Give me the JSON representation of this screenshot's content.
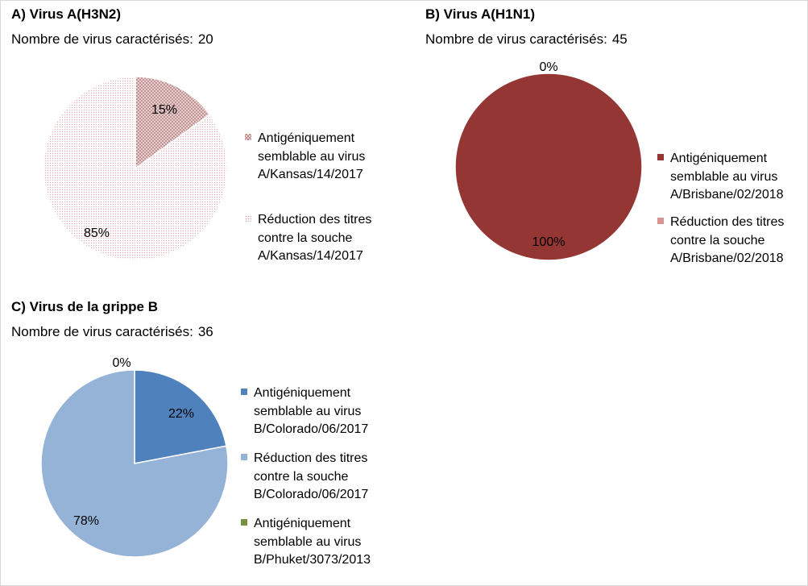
{
  "colors": {
    "h3n2_kansas": "#b88888",
    "h3n2_reduced": "#e7c9c9",
    "h1n1_brisbane": "#943634",
    "h1n1_reduced": "#d99594",
    "b_colorado": "#4f81bd",
    "b_reduced": "#95b3d7",
    "b_phuket": "#77933c"
  },
  "panels": [
    {
      "title": "A) Virus A(H3N2)",
      "count_label": "Nombre de virus caractérisés:",
      "count": "20",
      "legend": [
        {
          "lines": [
            "Antigéniquement",
            "semblable au virus",
            "A/Kansas/14/2017"
          ]
        },
        {
          "lines": [
            "Réduction des titres",
            "contre la souche",
            "A/Kansas/14/2017"
          ]
        }
      ]
    },
    {
      "title": "B) Virus A(H1N1)",
      "count_label": "Nombre de virus caractérisés:",
      "count": "45",
      "legend": [
        {
          "lines": [
            "Antigéniquement",
            "semblable au virus",
            "A/Brisbane/02/2018"
          ]
        },
        {
          "lines": [
            "Réduction des titres",
            "contre la souche",
            "A/Brisbane/02/2018"
          ]
        }
      ]
    },
    {
      "title": "C) Virus de la grippe B",
      "count_label": "Nombre de virus caractérisés:",
      "count": "36",
      "legend": [
        {
          "lines": [
            "Antigéniquement",
            "semblable au virus",
            "B/Colorado/06/2017"
          ]
        },
        {
          "lines": [
            "Réduction des titres",
            "contre la souche",
            "B/Colorado/06/2017"
          ]
        },
        {
          "lines": [
            "Antigéniquement",
            "semblable au virus",
            "B/Phuket/3073/2013"
          ]
        }
      ]
    }
  ],
  "chart_data": [
    {
      "type": "pie",
      "title": "A) Virus A(H3N2)",
      "subtitle": "Nombre de virus caractérisés: 20",
      "slices": [
        {
          "value": 15,
          "label": "15%",
          "legend": "Antigéniquement semblable au virus A/Kansas/14/2017",
          "fill": "hatch",
          "color": "#b88888"
        },
        {
          "value": 85,
          "label": "85%",
          "legend": "Réduction des titres contre la souche A/Kansas/14/2017",
          "fill": "dots",
          "color": "#e7c9c9"
        }
      ],
      "legend_position": "right"
    },
    {
      "type": "pie",
      "title": "B) Virus A(H1N1)",
      "subtitle": "Nombre de virus caractérisés: 45",
      "slices": [
        {
          "value": 100,
          "label": "100%",
          "legend": "Antigéniquement semblable au virus A/Brisbane/02/2018",
          "fill": "solid",
          "color": "#943634"
        },
        {
          "value": 0,
          "label": "0%",
          "legend": "Réduction des titres contre la souche A/Brisbane/02/2018",
          "fill": "solid",
          "color": "#d99594"
        }
      ],
      "legend_position": "right"
    },
    {
      "type": "pie",
      "title": "C) Virus de la grippe B",
      "subtitle": "Nombre de virus caractérisés: 36",
      "slices": [
        {
          "value": 22,
          "label": "22%",
          "legend": "Antigéniquement semblable au virus B/Colorado/06/2017",
          "fill": "solid",
          "color": "#4f81bd"
        },
        {
          "value": 78,
          "label": "78%",
          "legend": "Réduction des titres contre la souche B/Colorado/06/2017",
          "fill": "solid",
          "color": "#95b3d7"
        },
        {
          "value": 0,
          "label": "0%",
          "legend": "Antigéniquement semblable au virus B/Phuket/3073/2013",
          "fill": "solid",
          "color": "#77933c"
        }
      ],
      "legend_position": "right"
    }
  ]
}
